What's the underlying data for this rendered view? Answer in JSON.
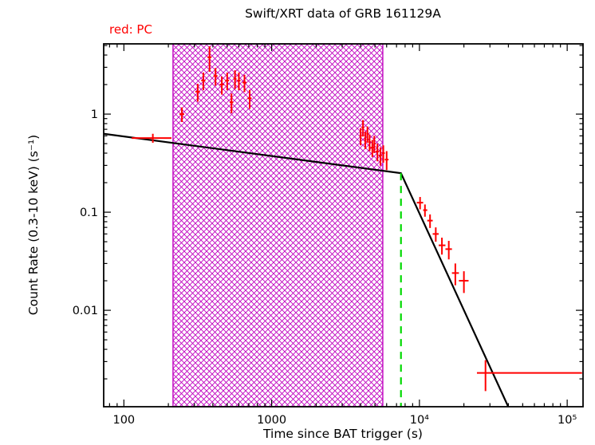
{
  "title": "Swift/XRT data of GRB 161129A",
  "mode_label": "red: PC",
  "xlabel": "Time since BAT trigger (s)",
  "ylabel": "Count Rate (0.3-10 keV) (s⁻¹)",
  "colors": {
    "data": "#ff0000",
    "fit": "#000000",
    "band": "#c000c0",
    "break_line": "#00d900",
    "frame": "#000000"
  },
  "chart_data": {
    "type": "scatter",
    "xscale": "log",
    "yscale": "log",
    "xlim": [
      73,
      128000
    ],
    "ylim": [
      0.00104,
      5.2
    ],
    "grid": false,
    "legend": "none",
    "xticks": [
      {
        "v": 100,
        "label": "100"
      },
      {
        "v": 1000,
        "label": "1000"
      },
      {
        "v": 10000,
        "label": "10⁴"
      },
      {
        "v": 100000,
        "label": "10⁵"
      }
    ],
    "yticks": [
      {
        "v": 0.01,
        "label": "0.01"
      },
      {
        "v": 0.1,
        "label": "0.1"
      },
      {
        "v": 1,
        "label": "1"
      }
    ],
    "band": {
      "x0": 215,
      "x1": 5650
    },
    "break_line": {
      "t": 7500,
      "rate_top": 0.25
    },
    "fit_line": [
      [
        73,
        0.63
      ],
      [
        7500,
        0.25
      ],
      [
        39800,
        0.00105
      ]
    ],
    "points": [
      {
        "t": 157,
        "tlo": 113,
        "thi": 210,
        "r": 0.57,
        "rerr": 0.06
      },
      {
        "t": 247,
        "tlo": 238,
        "thi": 256,
        "r": 1.0,
        "rerr": 0.17
      },
      {
        "t": 316,
        "tlo": 305,
        "thi": 327,
        "r": 1.69,
        "rerr": 0.35
      },
      {
        "t": 345,
        "tlo": 334,
        "thi": 356,
        "r": 2.2,
        "rerr": 0.45
      },
      {
        "t": 380,
        "tlo": 368,
        "thi": 392,
        "r": 3.8,
        "rerr": 1.1
      },
      {
        "t": 417,
        "tlo": 404,
        "thi": 430,
        "r": 2.45,
        "rerr": 0.5
      },
      {
        "t": 460,
        "tlo": 445,
        "thi": 475,
        "r": 2.0,
        "rerr": 0.42
      },
      {
        "t": 500,
        "tlo": 485,
        "thi": 515,
        "r": 2.2,
        "rerr": 0.45
      },
      {
        "t": 535,
        "tlo": 520,
        "thi": 550,
        "r": 1.32,
        "rerr": 0.3
      },
      {
        "t": 565,
        "tlo": 552,
        "thi": 578,
        "r": 2.3,
        "rerr": 0.5
      },
      {
        "t": 600,
        "tlo": 585,
        "thi": 615,
        "r": 2.2,
        "rerr": 0.45
      },
      {
        "t": 655,
        "tlo": 635,
        "thi": 675,
        "r": 2.1,
        "rerr": 0.42
      },
      {
        "t": 710,
        "tlo": 688,
        "thi": 732,
        "r": 1.45,
        "rerr": 0.32
      },
      {
        "t": 4000,
        "tlo": 3930,
        "thi": 4070,
        "r": 0.6,
        "rerr": 0.12
      },
      {
        "t": 4150,
        "tlo": 4070,
        "thi": 4230,
        "r": 0.73,
        "rerr": 0.14
      },
      {
        "t": 4300,
        "tlo": 4230,
        "thi": 4370,
        "r": 0.55,
        "rerr": 0.11
      },
      {
        "t": 4450,
        "tlo": 4370,
        "thi": 4530,
        "r": 0.63,
        "rerr": 0.12
      },
      {
        "t": 4600,
        "tlo": 4530,
        "thi": 4680,
        "r": 0.52,
        "rerr": 0.1
      },
      {
        "t": 4800,
        "tlo": 4680,
        "thi": 4900,
        "r": 0.455,
        "rerr": 0.09
      },
      {
        "t": 4950,
        "tlo": 4900,
        "thi": 5050,
        "r": 0.5,
        "rerr": 0.1
      },
      {
        "t": 5200,
        "tlo": 5050,
        "thi": 5320,
        "r": 0.415,
        "rerr": 0.085
      },
      {
        "t": 5450,
        "tlo": 5320,
        "thi": 5570,
        "r": 0.378,
        "rerr": 0.08
      },
      {
        "t": 5700,
        "tlo": 5570,
        "thi": 5830,
        "r": 0.4,
        "rerr": 0.08
      },
      {
        "t": 6000,
        "tlo": 5830,
        "thi": 6180,
        "r": 0.344,
        "rerr": 0.075
      },
      {
        "t": 10100,
        "tlo": 9600,
        "thi": 10600,
        "r": 0.125,
        "rerr": 0.018
      },
      {
        "t": 10900,
        "tlo": 10600,
        "thi": 11300,
        "r": 0.105,
        "rerr": 0.015
      },
      {
        "t": 11800,
        "tlo": 11300,
        "thi": 12300,
        "r": 0.082,
        "rerr": 0.013
      },
      {
        "t": 12900,
        "tlo": 12300,
        "thi": 13500,
        "r": 0.06,
        "rerr": 0.01
      },
      {
        "t": 14200,
        "tlo": 13500,
        "thi": 15000,
        "r": 0.046,
        "rerr": 0.009
      },
      {
        "t": 15800,
        "tlo": 15000,
        "thi": 16600,
        "r": 0.042,
        "rerr": 0.009
      },
      {
        "t": 17500,
        "tlo": 16600,
        "thi": 18500,
        "r": 0.024,
        "rerr": 0.006
      },
      {
        "t": 20000,
        "tlo": 18500,
        "thi": 21500,
        "r": 0.02,
        "rerr": 0.005
      },
      {
        "t": 28000,
        "tlo": 24500,
        "thi": 126000,
        "r": 0.0023,
        "rerr": 0.0008
      }
    ]
  }
}
